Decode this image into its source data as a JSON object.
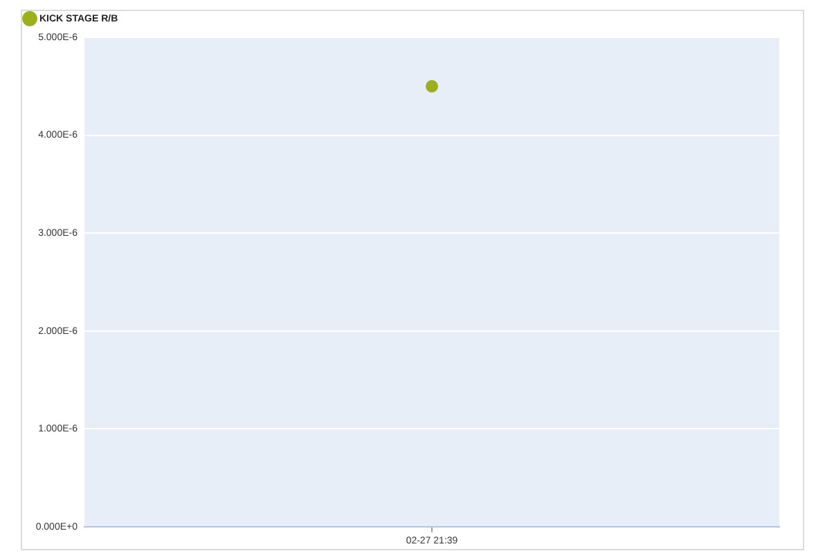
{
  "chart_data": {
    "type": "scatter",
    "categories": [
      "02-27 21:39"
    ],
    "series": [
      {
        "name": "KICK STAGE R/B",
        "color": "#9bb01b",
        "values": [
          4.5e-06
        ]
      }
    ],
    "ylim": [
      0,
      5e-06
    ],
    "yticks": [
      {
        "value": 0,
        "label": "0.000E+0"
      },
      {
        "value": 1e-06,
        "label": "1.000E-6"
      },
      {
        "value": 2e-06,
        "label": "2.000E-6"
      },
      {
        "value": 3e-06,
        "label": "3.000E-6"
      },
      {
        "value": 4e-06,
        "label": "4.000E-6"
      },
      {
        "value": 5e-06,
        "label": "5.000E-6"
      }
    ],
    "grid": "y",
    "legend": "top left",
    "marker": "circle"
  }
}
